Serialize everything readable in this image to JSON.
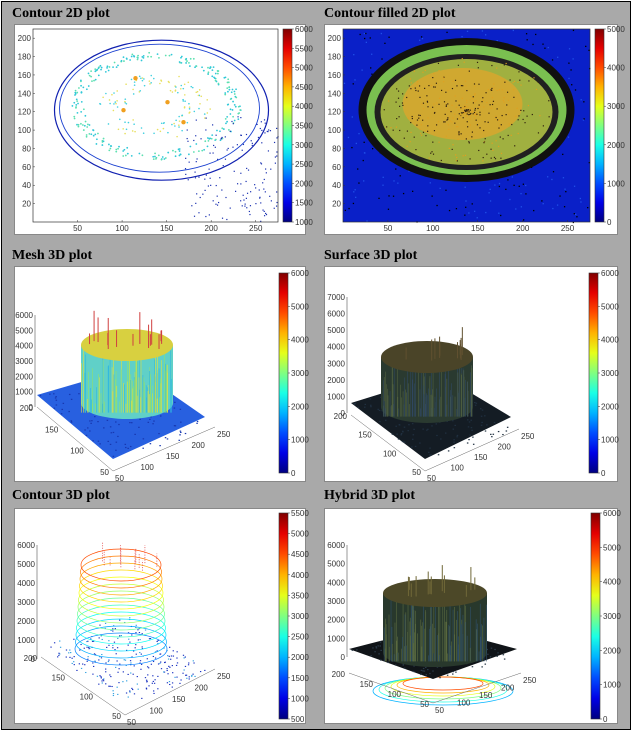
{
  "panels": [
    {
      "title": "Contour 2D plot"
    },
    {
      "title": "Contour filled 2D plot"
    },
    {
      "title": "Mesh 3D plot"
    },
    {
      "title": "Surface 3D plot"
    },
    {
      "title": "Contour 3D plot"
    },
    {
      "title": "Hybrid 3D plot"
    }
  ],
  "colors": {
    "frame": "#a9a9a9",
    "colormap": "jet"
  },
  "chart_data": [
    {
      "type": "heatmap",
      "style": "contour-2d",
      "xticks": [
        "50",
        "100",
        "150",
        "200",
        "250"
      ],
      "yticks": [
        "20",
        "40",
        "60",
        "80",
        "100",
        "120",
        "140",
        "160",
        "180",
        "200"
      ],
      "colorbar_ticks": [
        "1000",
        "1500",
        "2000",
        "2500",
        "3000",
        "3500",
        "4000",
        "4500",
        "5000",
        "5500",
        "6000"
      ]
    },
    {
      "type": "heatmap",
      "style": "contour-filled-2d",
      "xticks": [
        "50",
        "100",
        "150",
        "200",
        "250"
      ],
      "yticks": [
        "20",
        "40",
        "60",
        "80",
        "100",
        "120",
        "140",
        "160",
        "180",
        "200"
      ],
      "colorbar_ticks": [
        "0",
        "1000",
        "2000",
        "3000",
        "4000",
        "5000"
      ]
    },
    {
      "type": "surface",
      "style": "mesh-3d",
      "zticks": [
        "0",
        "1000",
        "2000",
        "3000",
        "4000",
        "5000",
        "6000"
      ],
      "xticks": [
        "50",
        "100",
        "150",
        "200",
        "250"
      ],
      "yticks": [
        "50",
        "100",
        "150",
        "200"
      ],
      "colorbar_ticks": [
        "0",
        "1000",
        "2000",
        "3000",
        "4000",
        "5000",
        "6000"
      ]
    },
    {
      "type": "surface",
      "style": "surface-3d",
      "zticks": [
        "0",
        "1000",
        "2000",
        "3000",
        "4000",
        "5000",
        "6000",
        "7000"
      ],
      "xticks": [
        "50",
        "100",
        "150",
        "200",
        "250"
      ],
      "yticks": [
        "50",
        "100",
        "150",
        "200"
      ],
      "colorbar_ticks": [
        "0",
        "1000",
        "2000",
        "3000",
        "4000",
        "5000",
        "6000"
      ]
    },
    {
      "type": "surface",
      "style": "contour-3d",
      "zticks": [
        "0",
        "1000",
        "2000",
        "3000",
        "4000",
        "5000",
        "6000"
      ],
      "xticks": [
        "50",
        "100",
        "150",
        "200",
        "250"
      ],
      "yticks": [
        "50",
        "100",
        "150",
        "200"
      ],
      "colorbar_ticks": [
        "500",
        "1000",
        "1500",
        "2000",
        "2500",
        "3000",
        "3500",
        "4000",
        "4500",
        "5000",
        "5500"
      ]
    },
    {
      "type": "surface",
      "style": "hybrid-3d",
      "zticks": [
        "0",
        "1000",
        "2000",
        "3000",
        "4000",
        "5000",
        "6000"
      ],
      "xticks": [
        "50",
        "100",
        "150",
        "200",
        "250"
      ],
      "yticks": [
        "50",
        "100",
        "150",
        "200"
      ],
      "colorbar_ticks": [
        "0",
        "1000",
        "2000",
        "3000",
        "4000",
        "5000",
        "6000"
      ]
    }
  ]
}
